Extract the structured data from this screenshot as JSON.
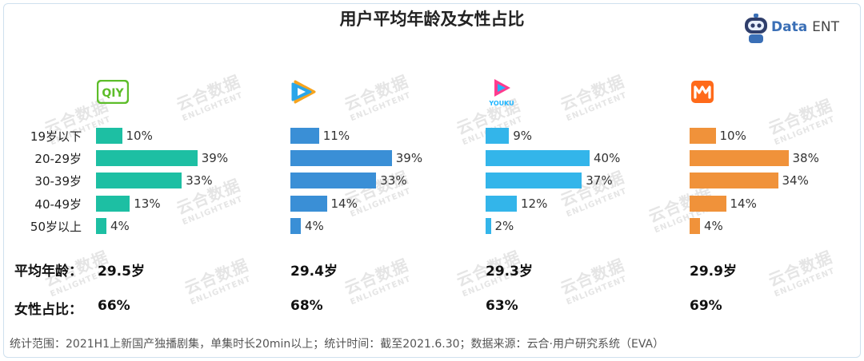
{
  "title": "用户平均年龄及女性占比",
  "brand": {
    "name": "Data",
    "name_suffix": "ENT"
  },
  "watermark": {
    "line1": "云合数据",
    "line2": "ENLIGHTENT"
  },
  "rows": {
    "avg_age_label": "平均年龄：",
    "female_label": "女性占比："
  },
  "footnote": "统计范围：2021H1上新国产独播剧集，单集时长20min以上；统计时间：截至2021.6.30；数据来源：云合·用户研究系统（EVA）",
  "chart_data": {
    "type": "bar",
    "orientation": "horizontal",
    "categories": [
      "19岁以下",
      "20-29岁",
      "30-39岁",
      "40-49岁",
      "50岁以上"
    ],
    "xlim": [
      0,
      100
    ],
    "series": [
      {
        "logo": "iqiyi-logo",
        "logo_text": "QIY",
        "color": "#1dbfa3",
        "values": [
          10,
          39,
          33,
          13,
          4
        ],
        "avg_age": "29.5岁",
        "female_share": "66%"
      },
      {
        "logo": "tencent-video-logo",
        "color": "#3a8fd6",
        "values": [
          11,
          39,
          33,
          14,
          4
        ],
        "avg_age": "29.4岁",
        "female_share": "68%"
      },
      {
        "logo": "youku-logo",
        "logo_text": "YOUKU",
        "color": "#33b5ea",
        "values": [
          9,
          40,
          37,
          12,
          2
        ],
        "avg_age": "29.3岁",
        "female_share": "63%"
      },
      {
        "logo": "mango-tv-logo",
        "color": "#f0923a",
        "values": [
          10,
          38,
          34,
          14,
          4
        ],
        "avg_age": "29.9岁",
        "female_share": "69%"
      }
    ]
  }
}
